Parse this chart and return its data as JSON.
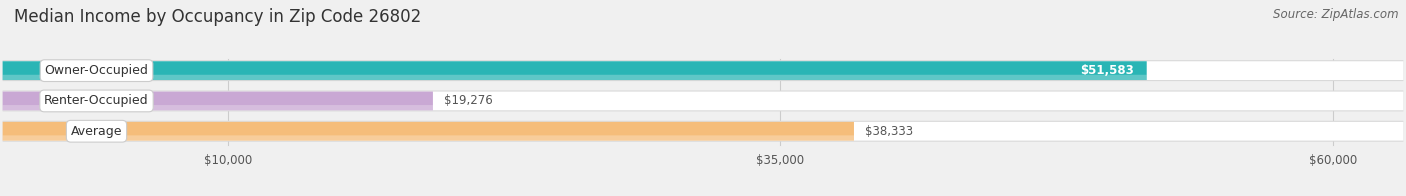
{
  "title": "Median Income by Occupancy in Zip Code 26802",
  "source": "Source: ZipAtlas.com",
  "categories": [
    "Owner-Occupied",
    "Renter-Occupied",
    "Average"
  ],
  "values": [
    51583,
    19276,
    38333
  ],
  "bar_colors": [
    "#2ab5b5",
    "#c9a8d4",
    "#f5bd7a"
  ],
  "label_texts": [
    "$51,583",
    "$19,276",
    "$38,333"
  ],
  "label_inside": [
    true,
    false,
    false
  ],
  "x_ticks": [
    10000,
    35000,
    60000
  ],
  "x_tick_labels": [
    "$10,000",
    "$35,000",
    "$60,000"
  ],
  "xlim_max": 63000,
  "background_color": "#f0f0f0",
  "bar_bg_color": "#e0e0e0",
  "bar_bg_border": "#d0d0d0",
  "title_fontsize": 12,
  "source_fontsize": 8.5,
  "label_fontsize": 8.5,
  "tick_fontsize": 8.5,
  "category_fontsize": 9
}
